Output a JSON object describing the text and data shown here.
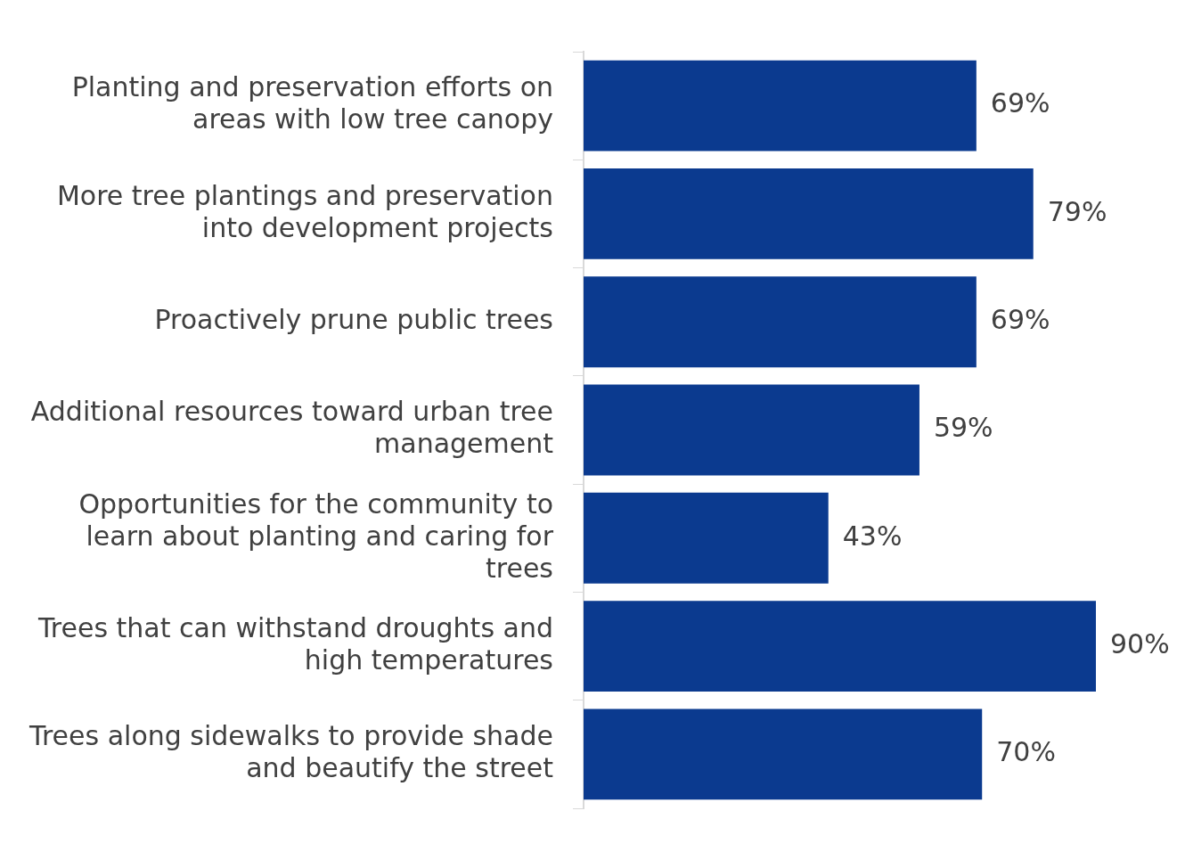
{
  "chart_data": {
    "type": "bar",
    "orientation": "horizontal",
    "categories": [
      "Planting and preservation efforts on areas with low tree canopy",
      "More tree plantings and preservation into development projects",
      "Proactively prune public trees",
      "Additional resources toward urban tree management",
      "Opportunities for the community to learn about planting and caring for trees",
      "Trees that can withstand droughts and high temperatures",
      "Trees along sidewalks to provide shade and beautify the street"
    ],
    "values": [
      69,
      79,
      69,
      59,
      43,
      90,
      70
    ],
    "value_labels": [
      "69%",
      "79%",
      "69%",
      "59%",
      "43%",
      "90%",
      "70%"
    ],
    "color": "#0b3a8f",
    "tick_labels": "y",
    "grid": false,
    "legend": false
  }
}
